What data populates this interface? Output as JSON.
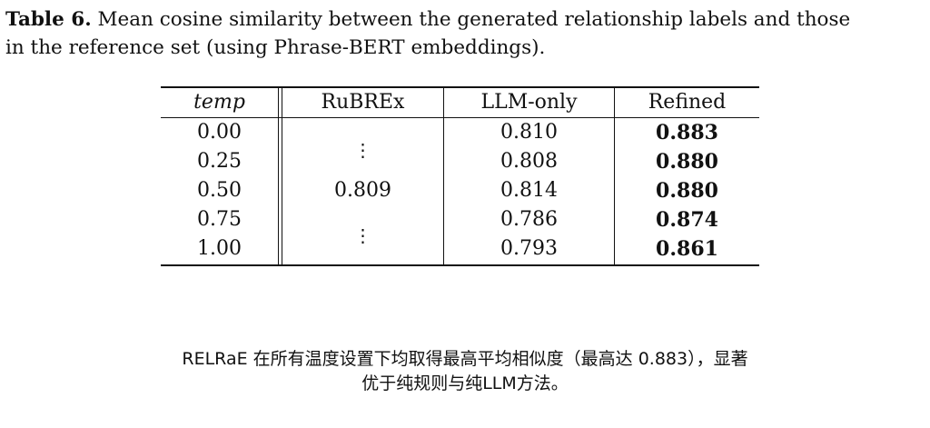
{
  "caption": {
    "label": "Table 6.",
    "line1": "Mean cosine similarity between the generated relationship labels and those",
    "line2": "in the reference set (using Phrase-BERT embeddings)."
  },
  "table": {
    "headers": [
      "temp",
      "RuBREx",
      "LLM-only",
      "Refined"
    ],
    "rubrex_value": "0.809",
    "rubrex_dots": "⋮",
    "rows": [
      {
        "temp": "0.00",
        "llm_only": "0.810",
        "refined": "0.883"
      },
      {
        "temp": "0.25",
        "llm_only": "0.808",
        "refined": "0.880"
      },
      {
        "temp": "0.50",
        "llm_only": "0.814",
        "refined": "0.880"
      },
      {
        "temp": "0.75",
        "llm_only": "0.786",
        "refined": "0.874"
      },
      {
        "temp": "1.00",
        "llm_only": "0.793",
        "refined": "0.861"
      }
    ]
  },
  "note": {
    "line1": "RELRaE 在所有温度设置下均取得最高平均相似度（最高达 0.883），显著",
    "line2": "优于纯规则与纯LLM方法。"
  }
}
